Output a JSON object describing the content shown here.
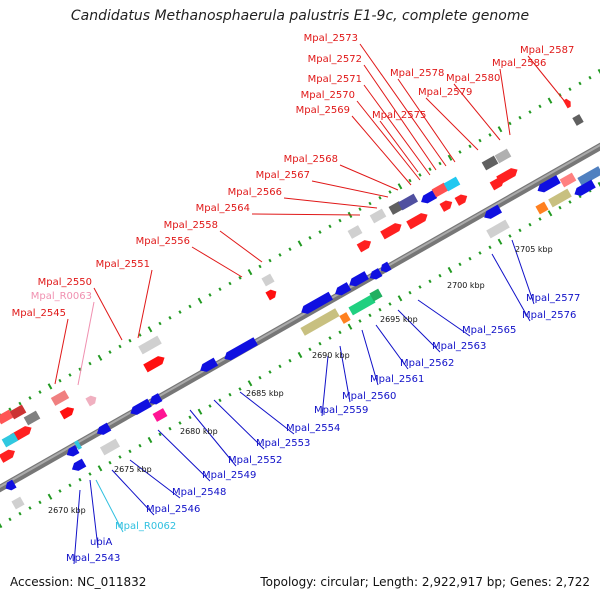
{
  "title": "Candidatus Methanosphaerula palustris E1-9c, complete genome",
  "footer": {
    "accession": "Accession: NC_011832",
    "summary": "Topology: circular; Length: 2,922,917 bp; Genes: 2,722"
  },
  "colors": {
    "forward": "#e81010",
    "reverse": "#1010e0",
    "rna_forward": "#f0a0c8",
    "rna_reverse": "#30c8e0",
    "backbone": "#888888",
    "tick": "#229922"
  },
  "scale_labels": [
    "2670 kbp",
    "2675 kbp",
    "2680 kbp",
    "2685 kbp",
    "2690 kbp",
    "2695 kbp",
    "2700 kbp",
    "2705 kbp"
  ],
  "forward_labels": [
    "Mpal_2545",
    "Mpal_R0063",
    "Mpal_2550",
    "Mpal_2551",
    "Mpal_2556",
    "Mpal_2558",
    "Mpal_2564",
    "Mpal_2566",
    "Mpal_2567",
    "Mpal_2568",
    "Mpal_2569",
    "Mpal_2570",
    "Mpal_2571",
    "Mpal_2572",
    "Mpal_2573",
    "Mpal_2575",
    "Mpal_2578",
    "Mpal_2579",
    "Mpal_2580",
    "Mpal_2586",
    "Mpal_2587"
  ],
  "reverse_labels": [
    "Mpal_2543",
    "ubiA",
    "Mpal_R0062",
    "Mpal_2546",
    "Mpal_2548",
    "Mpal_2549",
    "Mpal_2552",
    "Mpal_2553",
    "Mpal_2554",
    "Mpal_2559",
    "Mpal_2560",
    "Mpal_2561",
    "Mpal_2562",
    "Mpal_2563",
    "Mpal_2565",
    "Mpal_2576",
    "Mpal_2577"
  ]
}
